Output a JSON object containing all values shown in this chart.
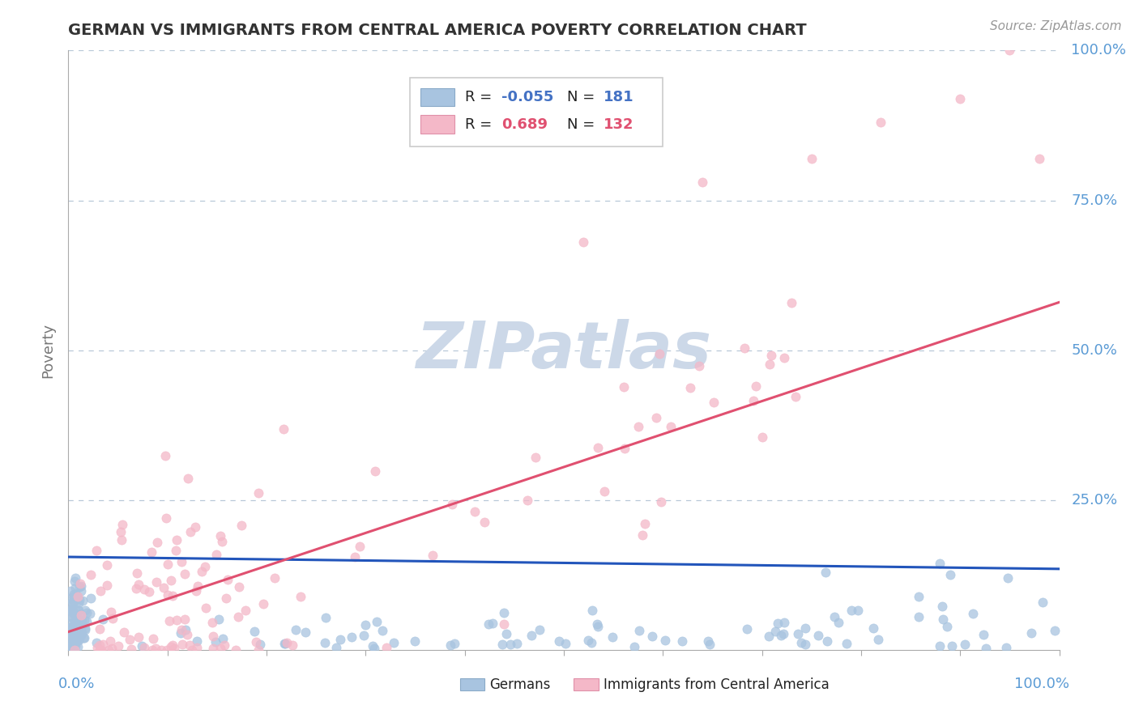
{
  "title": "GERMAN VS IMMIGRANTS FROM CENTRAL AMERICA POVERTY CORRELATION CHART",
  "source_text": "Source: ZipAtlas.com",
  "ylabel": "Poverty",
  "blue_R": -0.055,
  "blue_N": 181,
  "pink_R": 0.689,
  "pink_N": 132,
  "blue_scatter_color": "#a8c4e0",
  "pink_scatter_color": "#f4b8c8",
  "blue_line_color": "#2255bb",
  "pink_line_color": "#e05070",
  "background_color": "#ffffff",
  "grid_color": "#b8c8d8",
  "watermark_color": "#ccd8e8",
  "title_color": "#333333",
  "axis_label_color": "#5b9bd5",
  "legend_r_blue_color": "#4472c4",
  "legend_r_pink_color": "#e05070",
  "xlim": [
    0.0,
    1.0
  ],
  "ylim": [
    0.0,
    1.0
  ],
  "blue_line_y0": 0.155,
  "blue_line_y1": 0.135,
  "pink_line_y0": 0.03,
  "pink_line_y1": 0.58
}
